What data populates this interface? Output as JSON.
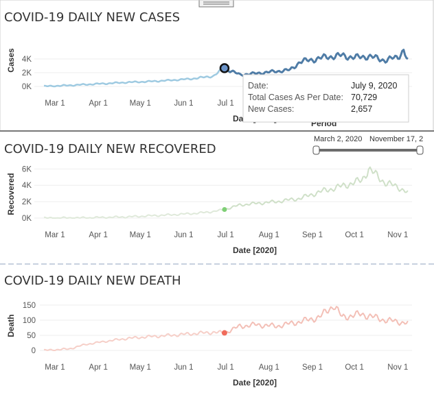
{
  "chart_data": [
    {
      "id": "cases",
      "type": "line",
      "title": "COVID-19 DAILY NEW CASES",
      "xlabel": "Date [2020]",
      "ylabel": "Cases",
      "x_ticks": [
        "Mar 1",
        "Apr 1",
        "May 1",
        "Jun 1",
        "Jul 1",
        "Aug 1",
        "Sep 1",
        "Oct 1",
        "Nov 1"
      ],
      "y_ticks": [
        "0K",
        "2K",
        "4K"
      ],
      "y_tick_values": [
        0,
        2000,
        4000
      ],
      "ylim": [
        0,
        6000
      ],
      "series": [
        {
          "color_before": "#9ecae1",
          "color_after": "#4f7ca6",
          "values": [
            {
              "d": "2020-03-02",
              "y": 10
            },
            {
              "d": "2020-03-15",
              "y": 100
            },
            {
              "d": "2020-04-01",
              "y": 280
            },
            {
              "d": "2020-04-15",
              "y": 420
            },
            {
              "d": "2020-05-01",
              "y": 600
            },
            {
              "d": "2020-05-15",
              "y": 700
            },
            {
              "d": "2020-06-01",
              "y": 900
            },
            {
              "d": "2020-06-15",
              "y": 1100
            },
            {
              "d": "2020-07-01",
              "y": 1500
            },
            {
              "d": "2020-07-09",
              "y": 2657
            },
            {
              "d": "2020-07-20",
              "y": 1700
            },
            {
              "d": "2020-08-01",
              "y": 1900
            },
            {
              "d": "2020-08-15",
              "y": 2200
            },
            {
              "d": "2020-08-25",
              "y": 2400
            },
            {
              "d": "2020-09-01",
              "y": 3600
            },
            {
              "d": "2020-09-10",
              "y": 3900
            },
            {
              "d": "2020-09-20",
              "y": 4300
            },
            {
              "d": "2020-10-01",
              "y": 4500
            },
            {
              "d": "2020-10-10",
              "y": 4200
            },
            {
              "d": "2020-10-20",
              "y": 4400
            },
            {
              "d": "2020-11-01",
              "y": 3800
            },
            {
              "d": "2020-11-10",
              "y": 4300
            },
            {
              "d": "2020-11-14",
              "y": 5300
            },
            {
              "d": "2020-11-17",
              "y": 3700
            }
          ]
        }
      ],
      "highlight": {
        "d": "2020-07-09",
        "y": 2657
      }
    },
    {
      "id": "recovered",
      "type": "line",
      "title": "COVID-19 DAILY NEW RECOVERED",
      "xlabel": "Date [2020]",
      "ylabel": "Recovered",
      "x_ticks": [
        "Mar 1",
        "Apr 1",
        "May 1",
        "Jun 1",
        "Jul 1",
        "Aug 1",
        "Sep 1",
        "Oct 1",
        "Nov 1"
      ],
      "y_ticks": [
        "0K",
        "2K",
        "4K",
        "6K"
      ],
      "y_tick_values": [
        0,
        2000,
        4000,
        6000
      ],
      "ylim": [
        0,
        6700
      ],
      "series": [
        {
          "color_before": "#dfe9da",
          "color_after": "#cfe0c8",
          "values": [
            {
              "d": "2020-03-02",
              "y": 0
            },
            {
              "d": "2020-04-01",
              "y": 30
            },
            {
              "d": "2020-05-01",
              "y": 150
            },
            {
              "d": "2020-06-01",
              "y": 400
            },
            {
              "d": "2020-06-20",
              "y": 600
            },
            {
              "d": "2020-07-01",
              "y": 800
            },
            {
              "d": "2020-07-09",
              "y": 1050
            },
            {
              "d": "2020-07-20",
              "y": 1600
            },
            {
              "d": "2020-08-01",
              "y": 1800
            },
            {
              "d": "2020-08-15",
              "y": 2000
            },
            {
              "d": "2020-09-01",
              "y": 2400
            },
            {
              "d": "2020-09-15",
              "y": 3200
            },
            {
              "d": "2020-10-01",
              "y": 3900
            },
            {
              "d": "2020-10-15",
              "y": 4600
            },
            {
              "d": "2020-10-20",
              "y": 6000
            },
            {
              "d": "2020-11-01",
              "y": 4300
            },
            {
              "d": "2020-11-10",
              "y": 3800
            },
            {
              "d": "2020-11-17",
              "y": 3100
            }
          ]
        }
      ],
      "highlight": {
        "d": "2020-07-09",
        "y": 1050
      }
    },
    {
      "id": "death",
      "type": "line",
      "title": "COVID-19 DAILY NEW DEATH",
      "xlabel": "Date [2020]",
      "ylabel": "Death",
      "x_ticks": [
        "Mar 1",
        "Apr 1",
        "May 1",
        "Jun 1",
        "Jul 1",
        "Aug 1",
        "Sep 1",
        "Oct 1",
        "Nov 1"
      ],
      "y_ticks": [
        "0",
        "50",
        "100",
        "150"
      ],
      "y_tick_values": [
        0,
        50,
        100,
        150
      ],
      "ylim": [
        0,
        170
      ],
      "series": [
        {
          "color_before": "#f6cfc8",
          "color_after": "#f3bfb6",
          "values": [
            {
              "d": "2020-03-02",
              "y": 0
            },
            {
              "d": "2020-03-20",
              "y": 5
            },
            {
              "d": "2020-04-01",
              "y": 20
            },
            {
              "d": "2020-04-15",
              "y": 30
            },
            {
              "d": "2020-05-01",
              "y": 40
            },
            {
              "d": "2020-05-15",
              "y": 45
            },
            {
              "d": "2020-06-01",
              "y": 50
            },
            {
              "d": "2020-06-15",
              "y": 55
            },
            {
              "d": "2020-07-01",
              "y": 60
            },
            {
              "d": "2020-07-09",
              "y": 58
            },
            {
              "d": "2020-07-20",
              "y": 80
            },
            {
              "d": "2020-08-01",
              "y": 85
            },
            {
              "d": "2020-08-15",
              "y": 80
            },
            {
              "d": "2020-09-01",
              "y": 95
            },
            {
              "d": "2020-09-15",
              "y": 110
            },
            {
              "d": "2020-09-25",
              "y": 150
            },
            {
              "d": "2020-10-01",
              "y": 110
            },
            {
              "d": "2020-10-15",
              "y": 120
            },
            {
              "d": "2020-11-01",
              "y": 100
            },
            {
              "d": "2020-11-10",
              "y": 95
            },
            {
              "d": "2020-11-17",
              "y": 90
            }
          ]
        }
      ],
      "highlight": {
        "d": "2020-07-09",
        "y": 58
      }
    }
  ],
  "tooltip": {
    "date_label": "Date:",
    "date_value": "July 9, 2020",
    "total_label": "Total Cases As Per Date:",
    "total_value": "70,729",
    "new_label": "New Cases:",
    "new_value": "2,657"
  },
  "period_filter": {
    "label": "Period",
    "start": "March 2, 2020",
    "end": "November 17, 2"
  },
  "colors": {
    "title": "#333333",
    "tick": "#555555",
    "grid": "#e6e6e6",
    "panel_divider": "#c7d0df"
  }
}
